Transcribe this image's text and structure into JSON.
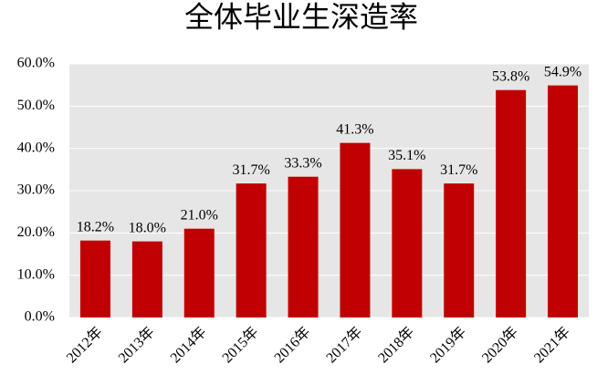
{
  "chart_data": {
    "type": "bar",
    "title": "全体毕业生深造率",
    "categories": [
      "2012年",
      "2013年",
      "2014年",
      "2015年",
      "2016年",
      "2017年",
      "2018年",
      "2019年",
      "2020年",
      "2021年"
    ],
    "values": [
      18.2,
      18.0,
      21.0,
      31.7,
      33.3,
      41.3,
      35.1,
      31.7,
      53.8,
      54.9
    ],
    "value_labels": [
      "18.2%",
      "18.0%",
      "21.0%",
      "31.7%",
      "33.3%",
      "41.3%",
      "35.1%",
      "31.7%",
      "53.8%",
      "54.9%"
    ],
    "color": "#c00000",
    "ylim": [
      0,
      60
    ],
    "yticks": [
      {
        "value": 0,
        "label": "0.0%"
      },
      {
        "value": 10,
        "label": "10.0%"
      },
      {
        "value": 20,
        "label": "20.0%"
      },
      {
        "value": 30,
        "label": "30.0%"
      },
      {
        "value": 40,
        "label": "40.0%"
      },
      {
        "value": 50,
        "label": "50.0%"
      },
      {
        "value": 60,
        "label": "60.0%"
      }
    ],
    "grid": true
  }
}
